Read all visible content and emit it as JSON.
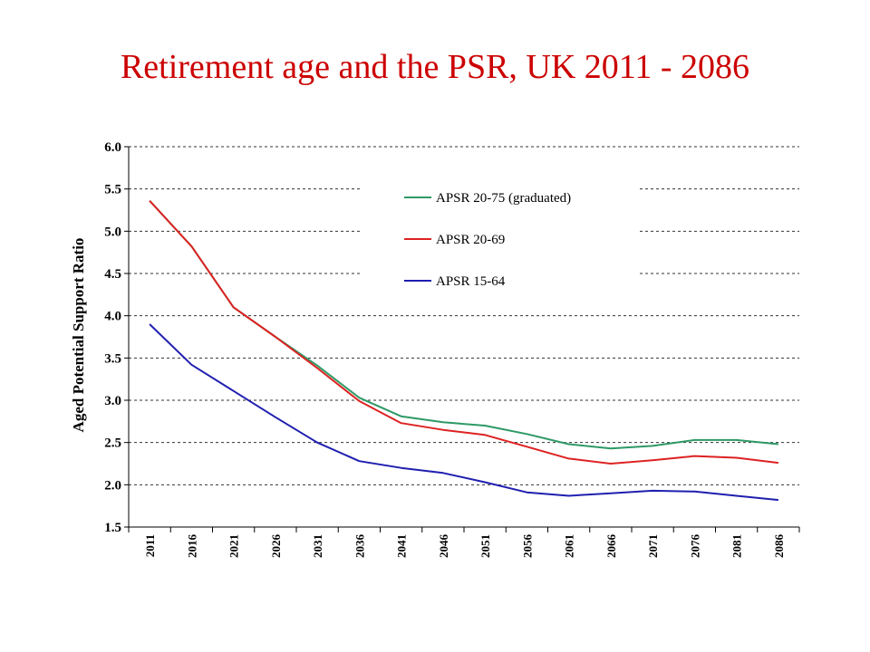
{
  "title": "Retirement age and the PSR, UK 2011 - 2086",
  "chart_data": {
    "type": "line",
    "title": "Retirement age and the PSR, UK 2011 - 2086",
    "xlabel": "",
    "ylabel": "Aged Potential Support Ratio",
    "ylim": [
      1.5,
      6.0
    ],
    "yticks": [
      "6.0",
      "5.5",
      "5.0",
      "4.5",
      "4.0",
      "3.5",
      "3.0",
      "2.5",
      "2.0",
      "1.5"
    ],
    "categories": [
      "2011",
      "2016",
      "2021",
      "2026",
      "2031",
      "2036",
      "2041",
      "2046",
      "2051",
      "2056",
      "2061",
      "2066",
      "2071",
      "2076",
      "2081",
      "2086"
    ],
    "grid": "horizontal dashed",
    "legend_position": "top-center",
    "series": [
      {
        "name": "APSR 20-75 (graduated)",
        "color": "#2e9966",
        "values": [
          5.36,
          4.82,
          4.1,
          3.75,
          3.41,
          3.03,
          2.81,
          2.74,
          2.7,
          2.6,
          2.48,
          2.43,
          2.46,
          2.53,
          2.53,
          2.48
        ]
      },
      {
        "name": "APSR 20-69",
        "color": "#dd2222",
        "values": [
          5.36,
          4.82,
          4.1,
          3.75,
          3.38,
          2.99,
          2.73,
          2.65,
          2.59,
          2.45,
          2.31,
          2.25,
          2.29,
          2.34,
          2.32,
          2.26
        ]
      },
      {
        "name": "APSR 15-64",
        "color": "#1f1fb0",
        "values": [
          3.9,
          3.42,
          3.11,
          2.8,
          2.5,
          2.28,
          2.2,
          2.14,
          2.03,
          1.91,
          1.87,
          1.9,
          1.93,
          1.92,
          1.87,
          1.82
        ]
      }
    ]
  }
}
